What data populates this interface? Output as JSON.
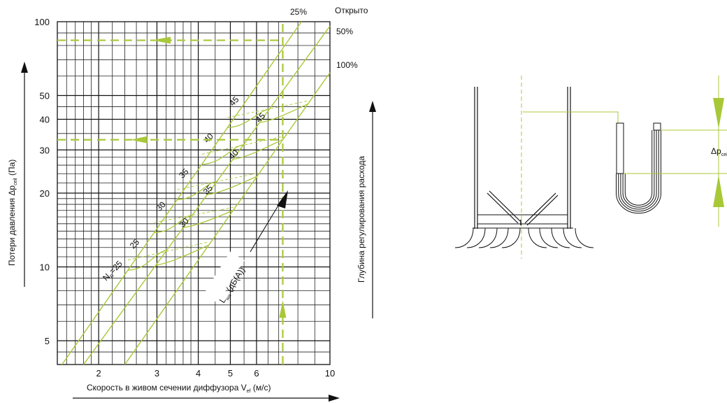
{
  "colors": {
    "accent": "#a8c838",
    "grid": "#111111"
  },
  "chart_data": {
    "type": "line",
    "x_scale": "log",
    "y_scale": "log",
    "xlabel": {
      "main": "Скорость в живом сечении диффузора V",
      "sub": "ef",
      "unit": " (м/с)"
    },
    "ylabel": {
      "main": "Потери давления Δp",
      "sub": "ceil",
      "unit": " (Па)"
    },
    "xlim": [
      1.5,
      10
    ],
    "ylim": [
      4,
      100
    ],
    "x_tick_labels": [
      "2",
      "3",
      "4",
      "5",
      "6",
      "10"
    ],
    "y_tick_labels": [
      "5",
      "10",
      "20",
      "30",
      "40",
      "50",
      "100"
    ],
    "right_axis_label": "Глубина регулирования расхода",
    "opening_header": "Открыто",
    "opening_series": [
      {
        "label": "25%",
        "points": [
          [
            1.55,
            4
          ],
          [
            8.2,
            100
          ]
        ]
      },
      {
        "label": "50%",
        "points": [
          [
            1.8,
            4
          ],
          [
            10,
            96
          ]
        ]
      },
      {
        "label": "100%",
        "points": [
          [
            2.4,
            4
          ],
          [
            10,
            62
          ]
        ]
      }
    ],
    "noise_levels": [
      {
        "label": "25",
        "y": [
          9.7,
          11.7
        ]
      },
      {
        "label": "30",
        "y": [
          13.8,
          16.2
        ]
      },
      {
        "label": "35",
        "y": [
          18.8,
          22.3
        ]
      },
      {
        "label": "40",
        "y": [
          26.2,
          31.5
        ]
      },
      {
        "label": "45",
        "y": [
          37,
          44
        ]
      }
    ],
    "noise_prefix": {
      "main": "N",
      "sub": "R",
      "suffix": "=25"
    },
    "noise_axis_label": {
      "main": "L",
      "sub": "wa",
      "suffix": " (дБ(A))"
    },
    "example": {
      "x": 7.2,
      "y_low": 33,
      "y_high": 84
    }
  },
  "diagram": {
    "delta_label": {
      "main": "Δp",
      "sub": "ceil"
    }
  }
}
